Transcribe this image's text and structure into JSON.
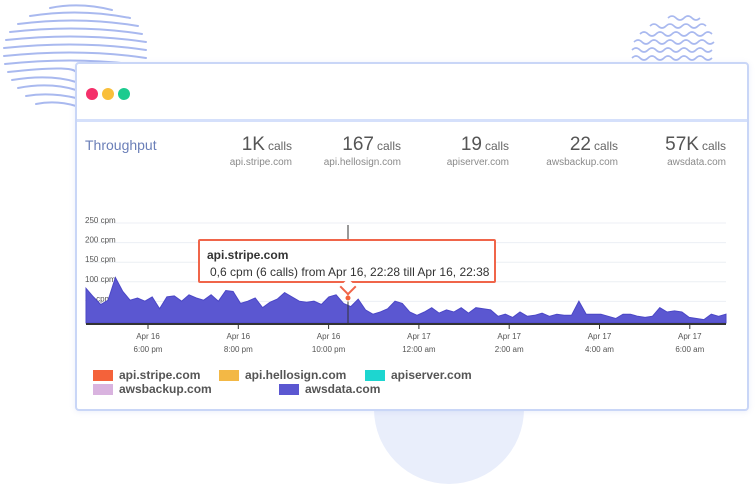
{
  "window": {
    "controls": [
      "close",
      "minimize",
      "maximize"
    ],
    "colors": {
      "close": "#f4306a",
      "minimize": "#f9bf3b",
      "maximize": "#1ccb8f"
    }
  },
  "section": {
    "title": "Throughput"
  },
  "metrics": [
    {
      "value": "1K",
      "unit": "calls",
      "host": "api.stripe.com"
    },
    {
      "value": "167",
      "unit": "calls",
      "host": "api.hellosign.com"
    },
    {
      "value": "19",
      "unit": "calls",
      "host": "apiserver.com"
    },
    {
      "value": "22",
      "unit": "calls",
      "host": "awsbackup.com"
    },
    {
      "value": "57K",
      "unit": "calls",
      "host": "awsdata.com"
    }
  ],
  "tooltip": {
    "title": "api.stripe.com",
    "detail": "0,6 cpm (6 calls) from Apr 16, 22:28 till Apr 16, 22:38"
  },
  "legend": [
    {
      "label": "api.stripe.com",
      "color": "#f4623a"
    },
    {
      "label": "api.hellosign.com",
      "color": "#f3b845"
    },
    {
      "label": "apiserver.com",
      "color": "#1dd6d0"
    },
    {
      "label": "awsbackup.com",
      "color": "#d9b3df"
    },
    {
      "label": "awsdata.com",
      "color": "#5b57d1"
    }
  ],
  "chart_data": {
    "type": "area",
    "y_ticks": [
      "250 cpm",
      "200 cpm",
      "150 cpm",
      "100 cpm",
      "50 cpm"
    ],
    "y_tick_values": [
      250,
      200,
      150,
      100,
      50
    ],
    "ylim": [
      0,
      250
    ],
    "x_ticks": [
      {
        "date": "Apr 16",
        "time": "6:00 pm"
      },
      {
        "date": "Apr 16",
        "time": "8:00 pm"
      },
      {
        "date": "Apr 16",
        "time": "10:00 pm"
      },
      {
        "date": "Apr 17",
        "time": "12:00 am"
      },
      {
        "date": "Apr 17",
        "time": "2:00 am"
      },
      {
        "date": "Apr 17",
        "time": "4:00 am"
      },
      {
        "date": "Apr 17",
        "time": "6:00 am"
      }
    ],
    "series": [
      {
        "name": "awsdata.com",
        "color": "#5b57d1",
        "values": [
          150,
          110,
          75,
          95,
          200,
          135,
          95,
          105,
          90,
          110,
          55,
          110,
          115,
          90,
          120,
          105,
          95,
          120,
          90,
          140,
          135,
          80,
          90,
          105,
          60,
          85,
          100,
          130,
          110,
          90,
          85,
          90,
          75,
          110,
          120,
          80,
          65,
          100,
          50,
          30,
          40,
          55,
          90,
          80,
          40,
          25,
          40,
          60,
          35,
          50,
          40,
          60,
          35,
          60,
          55,
          50,
          20,
          30,
          15,
          40,
          20,
          25,
          35,
          20,
          30,
          25,
          25,
          90,
          30,
          30,
          30,
          20,
          10,
          30,
          30,
          20,
          15,
          20,
          60,
          40,
          45,
          40,
          15,
          10,
          5,
          30,
          20,
          30
        ]
      }
    ],
    "grid": true
  }
}
